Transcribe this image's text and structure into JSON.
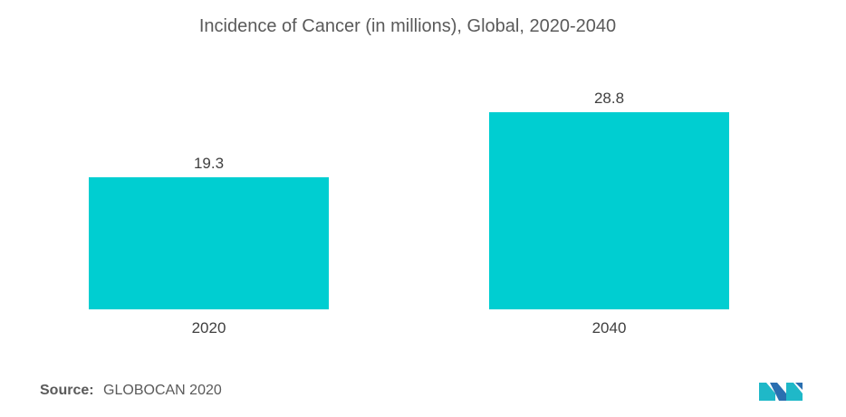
{
  "title": "Incidence of Cancer (in millions), Global, 2020-2040",
  "source": {
    "label": "Source:",
    "value": "GLOBOCAN 2020"
  },
  "colors": {
    "bar": "#00ced1",
    "text": "#5a5a5a",
    "axis": "#bfbfbf"
  },
  "icons": {
    "logo": "mordor-logo-icon"
  },
  "chart_data": {
    "type": "bar",
    "title": "Incidence of Cancer (in millions), Global, 2020-2040",
    "categories": [
      "2020",
      "2040"
    ],
    "values": [
      19.3,
      28.8
    ],
    "data_labels": [
      "19.3",
      "28.8"
    ],
    "xlabel": "",
    "ylabel": "",
    "ylim": [
      0,
      37
    ],
    "grid": false,
    "legend": "none"
  }
}
